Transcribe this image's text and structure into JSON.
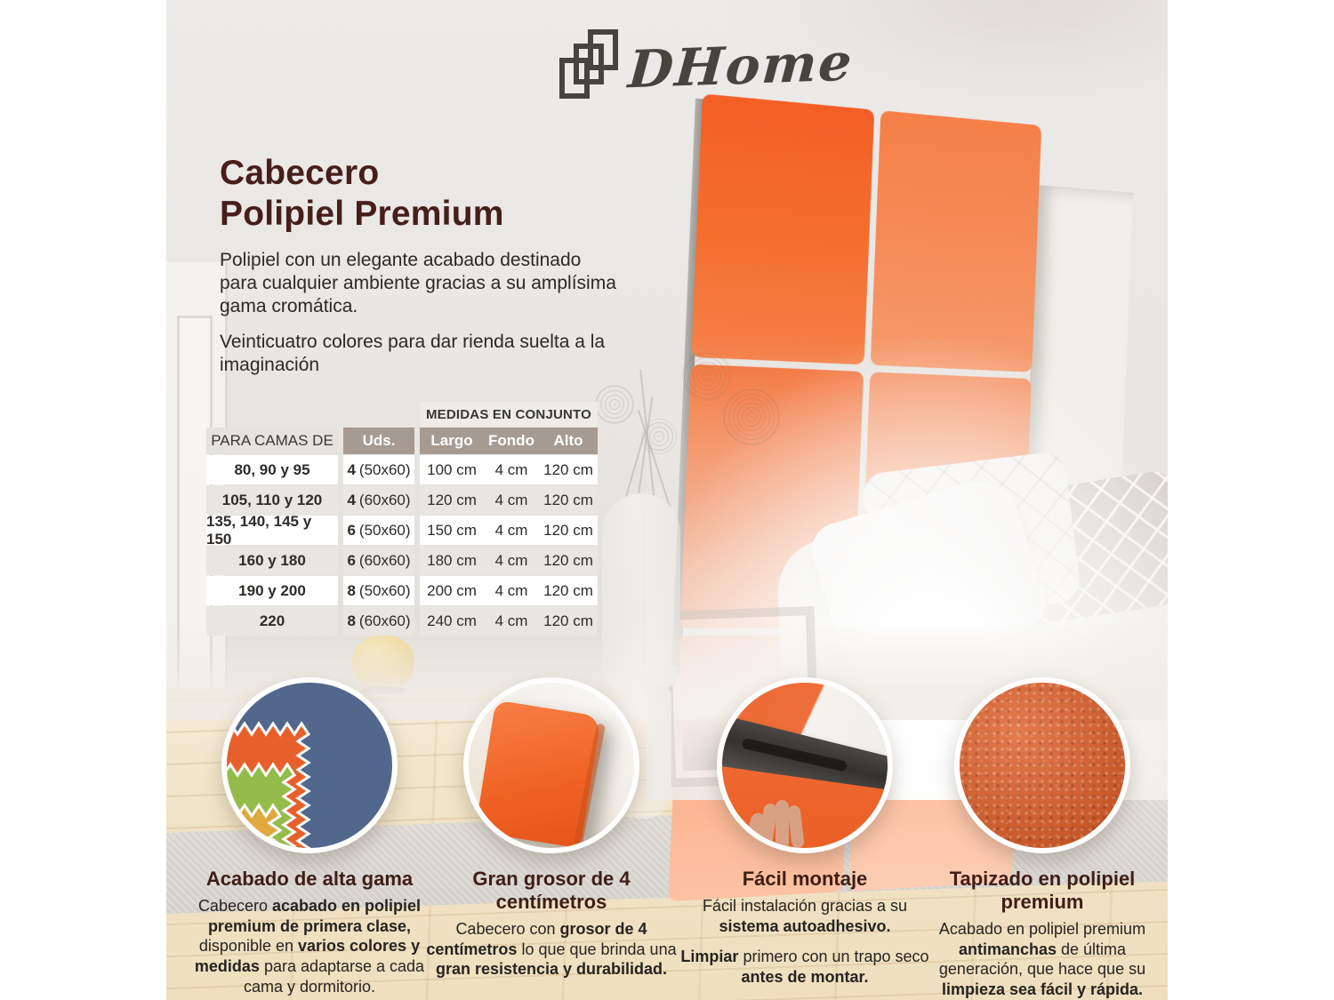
{
  "colors": {
    "accent_orange": "#F4672E",
    "title_maroon": "#461E1A",
    "table_taupe": "#A79A90",
    "body_text": "#2B2826",
    "wall_gray": "#EAE7E4",
    "wood_floor": "#F0E2C4"
  },
  "logo": {
    "text": "DHome",
    "icon": "overlapping-frames-icon"
  },
  "hero": {
    "title_line1": "Cabecero",
    "title_line2": "Polipiel Premium",
    "paragraph1": "Polipiel con un elegante acabado destinado para  cualquier ambiente gracias a su amplísima gama cromática.",
    "paragraph2": "Veinticuatro colores para dar rienda suelta a la imaginación"
  },
  "table": {
    "group_header": "MEDIDAS EN CONJUNTO",
    "col_beds": "PARA CAMAS DE",
    "col_units": "Uds.",
    "col_largo": "Largo",
    "col_fondo": "Fondo",
    "col_alto": "Alto",
    "rows": [
      {
        "beds": "80, 90 y 95",
        "uds_n": "4",
        "uds_size": "(50x60)",
        "largo": "100 cm",
        "fondo": "4 cm",
        "alto": "120 cm"
      },
      {
        "beds": "105, 110 y 120",
        "uds_n": "4",
        "uds_size": "(60x60)",
        "largo": "120 cm",
        "fondo": "4 cm",
        "alto": "120 cm"
      },
      {
        "beds": "135, 140, 145 y 150",
        "uds_n": "6",
        "uds_size": "(50x60)",
        "largo": "150 cm",
        "fondo": "4 cm",
        "alto": "120 cm"
      },
      {
        "beds": "160 y 180",
        "uds_n": "6",
        "uds_size": "(60x60)",
        "largo": "180 cm",
        "fondo": "4 cm",
        "alto": "120 cm"
      },
      {
        "beds": "190 y 200",
        "uds_n": "8",
        "uds_size": "(50x60)",
        "largo": "200 cm",
        "fondo": "4 cm",
        "alto": "120 cm"
      },
      {
        "beds": "220",
        "uds_n": "8",
        "uds_size": "(60x60)",
        "largo": "240 cm",
        "fondo": "4 cm",
        "alto": "120 cm"
      }
    ]
  },
  "features": [
    {
      "title": "Acabado de alta gama",
      "image": "fabric-swatches-image",
      "body": [
        [
          {
            "t": "Cabecero ",
            "b": false
          },
          {
            "t": "acabado en polipiel premium de primera clase,",
            "b": true
          },
          {
            "t": " disponible en ",
            "b": false
          },
          {
            "t": "varios colores y medidas",
            "b": true
          },
          {
            "t": " para adaptarse a cada cama y dormitorio.",
            "b": false
          }
        ]
      ]
    },
    {
      "title": "Gran grosor de 4 centímetros",
      "image": "panel-thickness-image",
      "body": [
        [
          {
            "t": "Cabecero con ",
            "b": false
          },
          {
            "t": "grosor de 4 centímetros",
            "b": true
          },
          {
            "t": " lo que que brinda una ",
            "b": false
          },
          {
            "t": "gran resistencia y durabilidad.",
            "b": true
          }
        ]
      ]
    },
    {
      "title": "Fácil montaje",
      "image": "adhesive-mounting-image",
      "body": [
        [
          {
            "t": "Fácil instalación gracias a su ",
            "b": false
          },
          {
            "t": "sistema autoadhesivo.",
            "b": true
          }
        ],
        [
          {
            "t": "Limpiar",
            "b": true
          },
          {
            "t": " primero con un trapo seco ",
            "b": false
          },
          {
            "t": "antes de montar.",
            "b": true
          }
        ]
      ]
    },
    {
      "title": "Tapizado en polipiel premium",
      "image": "leather-texture-image",
      "body": [
        [
          {
            "t": "Acabado en polipiel premium ",
            "b": false
          },
          {
            "t": "antimanchas",
            "b": true
          },
          {
            "t": " de última generación, que hace que su ",
            "b": false
          },
          {
            "t": "limpieza sea fácil y rápida.",
            "b": true
          }
        ]
      ]
    }
  ]
}
